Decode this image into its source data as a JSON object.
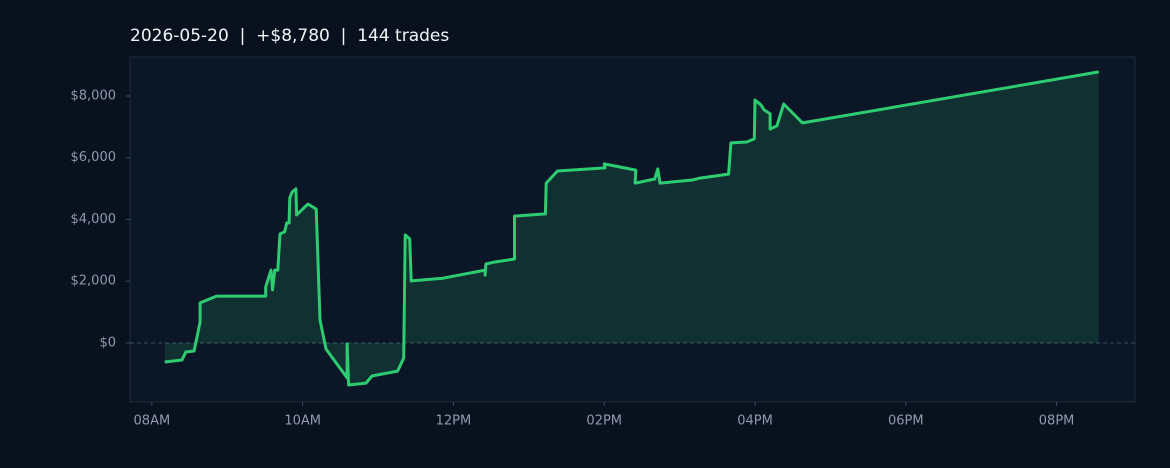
{
  "chart_data": {
    "type": "area",
    "title": "2026-05-20  |  +$8,780  |  144 trades",
    "color": "#2ecc71",
    "x": [
      8.17,
      8.4,
      8.45,
      8.56,
      8.64,
      8.64,
      8.8,
      8.86,
      9.51,
      9.51,
      9.58,
      9.6,
      9.63,
      9.67,
      9.7,
      9.76,
      9.79,
      9.82,
      9.83,
      9.86,
      9.91,
      9.92,
      10.07,
      10.18,
      10.23,
      10.31,
      10.59,
      10.59,
      10.61,
      10.84,
      10.92,
      11.26,
      11.34,
      11.36,
      11.42,
      11.44,
      11.86,
      12.42,
      12.42,
      12.43,
      12.54,
      12.81,
      12.81,
      13.22,
      13.23,
      13.38,
      14.01,
      14.0,
      14.42,
      14.41,
      14.67,
      14.71,
      14.74,
      15.17,
      15.27,
      15.65,
      15.68,
      15.89,
      15.99,
      16.0,
      16.08,
      16.12,
      16.2,
      16.2,
      16.29,
      16.38,
      16.63,
      20.56
    ],
    "values": [
      -615,
      -550,
      -290,
      -260,
      680,
      1300,
      1460,
      1520,
      1520,
      1810,
      2360,
      1720,
      2360,
      2360,
      3530,
      3600,
      3890,
      3890,
      4700,
      4890,
      4990,
      4150,
      4500,
      4340,
      745,
      -195,
      -1130,
      -30,
      -1360,
      -1300,
      -1070,
      -910,
      -490,
      3500,
      3370,
      2010,
      2100,
      2360,
      2200,
      2560,
      2620,
      2720,
      4110,
      4180,
      5180,
      5570,
      5670,
      5800,
      5600,
      5180,
      5310,
      5640,
      5180,
      5280,
      5340,
      5470,
      6480,
      6510,
      6610,
      7870,
      7710,
      7550,
      7420,
      6930,
      7030,
      7740,
      7130,
      8780
    ],
    "xlim": [
      7.71,
      21.04
    ],
    "xticks": [
      {
        "value": 8,
        "label": "08AM"
      },
      {
        "value": 10,
        "label": "10AM"
      },
      {
        "value": 12,
        "label": "12PM"
      },
      {
        "value": 14,
        "label": "02PM"
      },
      {
        "value": 16,
        "label": "04PM"
      },
      {
        "value": 18,
        "label": "06PM"
      },
      {
        "value": 20,
        "label": "08PM"
      }
    ],
    "ylim": [
      -1911,
      9263
    ],
    "yticks": [
      {
        "value": 0,
        "label": "$0"
      },
      {
        "value": 2000,
        "label": "$2,000"
      },
      {
        "value": 4000,
        "label": "$4,000"
      },
      {
        "value": 6000,
        "label": "$6,000"
      },
      {
        "value": 8000,
        "label": "$8,000"
      }
    ],
    "zero_line": true
  }
}
